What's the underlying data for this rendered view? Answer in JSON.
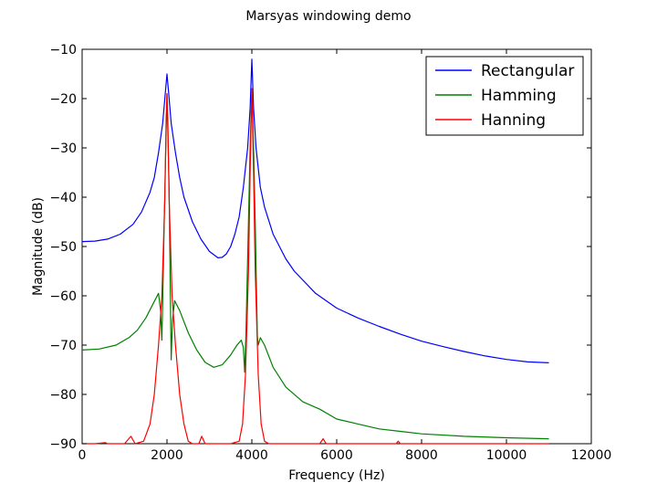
{
  "chart_data": {
    "type": "line",
    "title": "Marsyas windowing demo",
    "xlabel": "Frequency (Hz)",
    "ylabel": "Magnitude (dB)",
    "xlim": [
      0,
      12000
    ],
    "ylim": [
      -90,
      -10
    ],
    "x_ticks": [
      0,
      2000,
      4000,
      6000,
      8000,
      10000,
      12000
    ],
    "x_tick_labels": [
      "0",
      "2000",
      "4000",
      "6000",
      "8000",
      "10000",
      "12000"
    ],
    "y_ticks": [
      -10,
      -20,
      -30,
      -40,
      -50,
      -60,
      -70,
      -80,
      -90
    ],
    "y_tick_labels": [
      "−10",
      "−20",
      "−30",
      "−40",
      "−50",
      "−60",
      "−70",
      "−80",
      "−90"
    ],
    "grid": false,
    "legend_position": "top-right",
    "series": [
      {
        "name": "Rectangular",
        "color": "#0000ff",
        "points": [
          [
            0,
            -49
          ],
          [
            300,
            -48.9
          ],
          [
            600,
            -48.5
          ],
          [
            900,
            -47.5
          ],
          [
            1200,
            -45.5
          ],
          [
            1400,
            -43
          ],
          [
            1600,
            -39
          ],
          [
            1700,
            -36
          ],
          [
            1800,
            -31
          ],
          [
            1900,
            -25
          ],
          [
            1960,
            -19
          ],
          [
            2000,
            -15
          ],
          [
            2040,
            -19
          ],
          [
            2100,
            -25
          ],
          [
            2200,
            -31
          ],
          [
            2300,
            -36
          ],
          [
            2400,
            -40
          ],
          [
            2600,
            -45
          ],
          [
            2800,
            -48.5
          ],
          [
            3000,
            -51
          ],
          [
            3200,
            -52.3
          ],
          [
            3300,
            -52.2
          ],
          [
            3400,
            -51.5
          ],
          [
            3500,
            -50
          ],
          [
            3600,
            -47.5
          ],
          [
            3700,
            -44
          ],
          [
            3800,
            -38
          ],
          [
            3900,
            -30
          ],
          [
            3960,
            -22
          ],
          [
            4000,
            -12
          ],
          [
            4040,
            -22
          ],
          [
            4100,
            -30
          ],
          [
            4200,
            -38
          ],
          [
            4300,
            -42
          ],
          [
            4500,
            -47.5
          ],
          [
            4800,
            -52.5
          ],
          [
            5000,
            -55
          ],
          [
            5500,
            -59.5
          ],
          [
            6000,
            -62.5
          ],
          [
            6500,
            -64.5
          ],
          [
            7000,
            -66.2
          ],
          [
            7500,
            -67.8
          ],
          [
            8000,
            -69.2
          ],
          [
            8500,
            -70.3
          ],
          [
            9000,
            -71.3
          ],
          [
            9500,
            -72.2
          ],
          [
            10000,
            -72.9
          ],
          [
            10500,
            -73.4
          ],
          [
            11000,
            -73.6
          ]
        ]
      },
      {
        "name": "Hamming",
        "color": "#008000",
        "points": [
          [
            0,
            -71
          ],
          [
            400,
            -70.8
          ],
          [
            800,
            -70
          ],
          [
            1100,
            -68.5
          ],
          [
            1300,
            -67
          ],
          [
            1500,
            -64.5
          ],
          [
            1650,
            -62
          ],
          [
            1800,
            -59.5
          ],
          [
            1850,
            -63
          ],
          [
            1880,
            -69
          ],
          [
            1900,
            -61
          ],
          [
            1950,
            -38
          ],
          [
            2000,
            -19
          ],
          [
            2050,
            -38
          ],
          [
            2080,
            -60
          ],
          [
            2100,
            -73
          ],
          [
            2130,
            -65
          ],
          [
            2180,
            -61
          ],
          [
            2300,
            -63
          ],
          [
            2500,
            -67.5
          ],
          [
            2700,
            -71
          ],
          [
            2900,
            -73.5
          ],
          [
            3100,
            -74.5
          ],
          [
            3300,
            -74
          ],
          [
            3500,
            -72
          ],
          [
            3650,
            -70
          ],
          [
            3750,
            -69
          ],
          [
            3800,
            -70.5
          ],
          [
            3830,
            -75.5
          ],
          [
            3860,
            -68
          ],
          [
            3920,
            -45
          ],
          [
            3960,
            -30
          ],
          [
            4000,
            -18
          ],
          [
            4040,
            -30
          ],
          [
            4080,
            -45
          ],
          [
            4130,
            -68
          ],
          [
            4150,
            -70
          ],
          [
            4200,
            -68.5
          ],
          [
            4300,
            -70
          ],
          [
            4500,
            -74.5
          ],
          [
            4800,
            -78.5
          ],
          [
            5200,
            -81.5
          ],
          [
            5600,
            -83
          ],
          [
            6000,
            -85
          ],
          [
            6500,
            -86
          ],
          [
            7000,
            -87
          ],
          [
            7500,
            -87.5
          ],
          [
            8000,
            -88
          ],
          [
            9000,
            -88.5
          ],
          [
            10000,
            -88.8
          ],
          [
            11000,
            -89
          ]
        ]
      },
      {
        "name": "Hanning",
        "color": "#ff0000",
        "points": [
          [
            0,
            -90
          ],
          [
            300,
            -90
          ],
          [
            550,
            -89.8
          ],
          [
            600,
            -90
          ],
          [
            1000,
            -90
          ],
          [
            1150,
            -88.5
          ],
          [
            1250,
            -90
          ],
          [
            1450,
            -89.5
          ],
          [
            1600,
            -86
          ],
          [
            1700,
            -80
          ],
          [
            1800,
            -70
          ],
          [
            1880,
            -60
          ],
          [
            1950,
            -40
          ],
          [
            1980,
            -24
          ],
          [
            2000,
            -19
          ],
          [
            2020,
            -24
          ],
          [
            2050,
            -40
          ],
          [
            2120,
            -60
          ],
          [
            2200,
            -70
          ],
          [
            2300,
            -80
          ],
          [
            2400,
            -86
          ],
          [
            2500,
            -89.5
          ],
          [
            2600,
            -90
          ],
          [
            2750,
            -90
          ],
          [
            2820,
            -88.5
          ],
          [
            2900,
            -90
          ],
          [
            3500,
            -90
          ],
          [
            3700,
            -89.5
          ],
          [
            3780,
            -86
          ],
          [
            3850,
            -76
          ],
          [
            3920,
            -55
          ],
          [
            3960,
            -35
          ],
          [
            4000,
            -18
          ],
          [
            4040,
            -35
          ],
          [
            4080,
            -55
          ],
          [
            4150,
            -76
          ],
          [
            4220,
            -86
          ],
          [
            4300,
            -89.5
          ],
          [
            4400,
            -90
          ],
          [
            5600,
            -90
          ],
          [
            5680,
            -89
          ],
          [
            5750,
            -90
          ],
          [
            7400,
            -90
          ],
          [
            7450,
            -89.5
          ],
          [
            7500,
            -90
          ],
          [
            11000,
            -90
          ]
        ]
      }
    ]
  }
}
